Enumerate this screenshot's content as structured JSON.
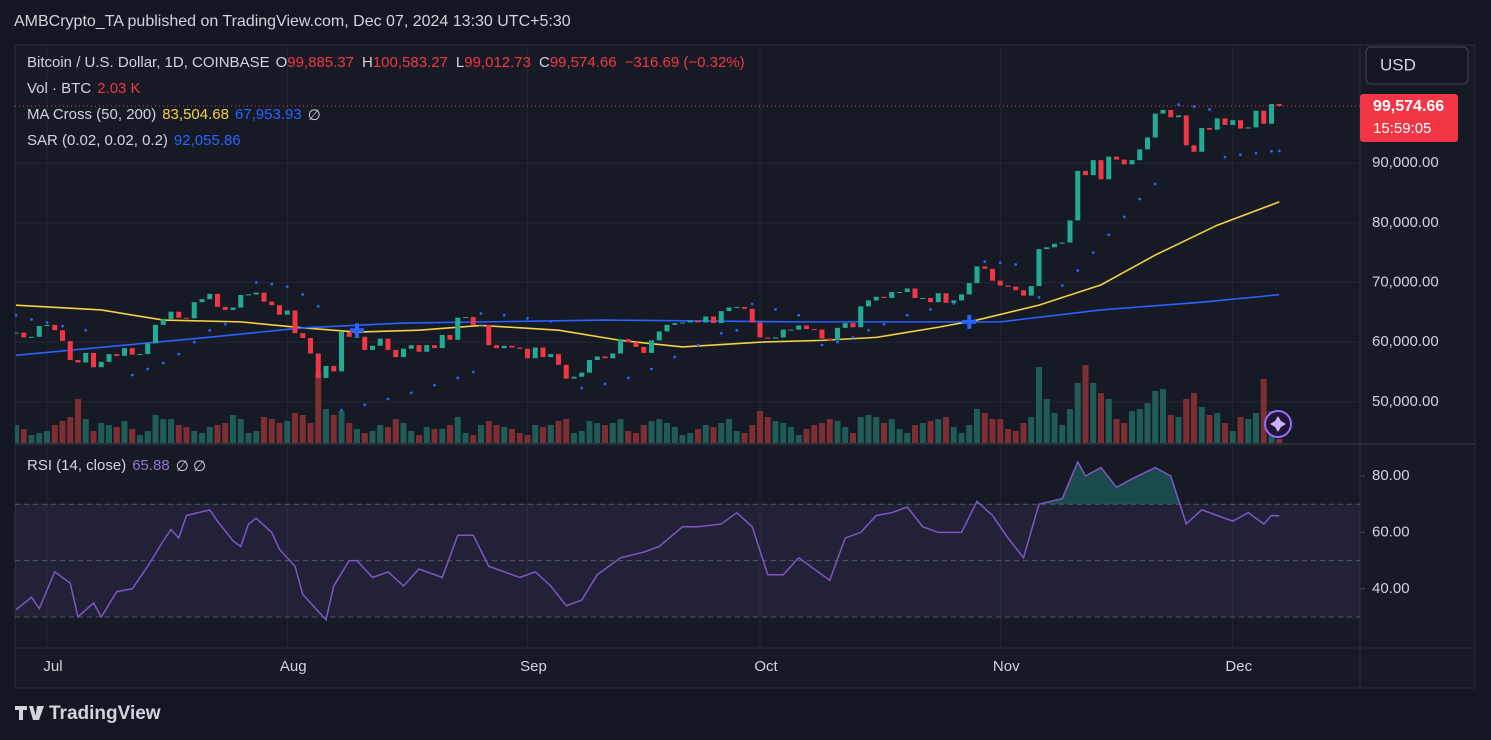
{
  "header": {
    "published": "AMBCrypto_TA published on TradingView.com, Dec 07, 2024 13:30 UTC+5:30",
    "logo": "TradingView",
    "currency": "USD"
  },
  "chart_data": [
    {
      "type": "candlestick",
      "symbol": "Bitcoin / U.S. Dollar, 1D, COINBASE",
      "ohlc": [
        {
          "label": "O",
          "value": "99,885.37"
        },
        {
          "label": "H",
          "value": "100,583.27"
        },
        {
          "label": "L",
          "value": "99,012.73"
        },
        {
          "label": "C",
          "value": "99,574.66"
        }
      ],
      "change": "−316.69 (−0.32%)",
      "volume_title": "Vol · BTC",
      "volume_label": "2.03 K",
      "ma_title": "MA Cross (50, 200)",
      "ma_labels": [
        "83,504.68",
        "67,953.93"
      ],
      "ma_extra": "∅",
      "sar_title": "SAR (0.02, 0.02, 0.2)",
      "sar_label": "92,055.86",
      "last_price_label": "99,574.66",
      "countdown": "15:59:05",
      "categories": [
        null,
        null,
        null,
        null,
        "Jul",
        null,
        null,
        null,
        null,
        null,
        null,
        null,
        null,
        null,
        null,
        null,
        null,
        null,
        null,
        null,
        null,
        null,
        null,
        null,
        null,
        null,
        null,
        null,
        null,
        null,
        null,
        null,
        null,
        null,
        null,
        "Aug",
        null,
        null,
        null,
        null,
        null,
        null,
        null,
        null,
        null,
        null,
        null,
        null,
        null,
        null,
        null,
        null,
        null,
        null,
        null,
        null,
        null,
        null,
        null,
        null,
        null,
        null,
        null,
        null,
        null,
        null,
        "Sep",
        null,
        null,
        null,
        null,
        null,
        null,
        null,
        null,
        null,
        null,
        null,
        null,
        null,
        null,
        null,
        null,
        null,
        null,
        null,
        null,
        null,
        null,
        null,
        null,
        null,
        null,
        null,
        null,
        null,
        "Oct",
        null,
        null,
        null,
        null,
        null,
        null,
        null,
        null,
        null,
        null,
        null,
        null,
        null,
        null,
        null,
        null,
        null,
        null,
        null,
        null,
        null,
        null,
        null,
        null,
        null,
        null,
        null,
        null,
        null,
        null,
        "Nov",
        null,
        null,
        null,
        null,
        null,
        null,
        null,
        null,
        null,
        null,
        null,
        null,
        null,
        null,
        null,
        null,
        null,
        null,
        null,
        null,
        null,
        null,
        null,
        null,
        null,
        null,
        null,
        null,
        null,
        "Dec",
        null,
        null,
        null,
        null,
        null,
        null
      ],
      "closes": [
        61600,
        60800,
        60900,
        62700,
        62900,
        62000,
        60200,
        57000,
        56600,
        58200,
        55800,
        56700,
        58000,
        57700,
        59000,
        57900,
        58000,
        59800,
        62900,
        63900,
        65100,
        64100,
        64000,
        66700,
        67200,
        68100,
        65900,
        65400,
        65800,
        67900,
        68000,
        68300,
        66800,
        66200,
        64600,
        65300,
        61500,
        60700,
        58100,
        54000,
        56000,
        55100,
        61700,
        60900,
        60900,
        58700,
        59400,
        60600,
        58700,
        57500,
        58900,
        59500,
        58400,
        59500,
        59000,
        61200,
        60400,
        64100,
        64200,
        62900,
        62900,
        59500,
        59000,
        59400,
        59100,
        58900,
        57300,
        59100,
        57500,
        58000,
        56200,
        53900,
        54200,
        54900,
        57000,
        57600,
        57300,
        58100,
        60500,
        60000,
        59200,
        58200,
        60300,
        61800,
        62900,
        63200,
        63300,
        63600,
        63300,
        64300,
        63200,
        65200,
        65800,
        65900,
        65600,
        63300,
        60800,
        60600,
        60800,
        62100,
        62100,
        62800,
        62200,
        62100,
        60600,
        60300,
        62400,
        63200,
        62500,
        66000,
        67000,
        67600,
        67400,
        68400,
        68400,
        69000,
        67400,
        67400,
        66700,
        68200,
        66600,
        67000,
        68000,
        69900,
        72700,
        72300,
        70300,
        69500,
        69300,
        68700,
        67800,
        69400,
        75600,
        75900,
        76500,
        76700,
        80400,
        88700,
        88000,
        90500,
        87300,
        91100,
        90600,
        89800,
        90500,
        92300,
        94300,
        98300,
        98900,
        97700,
        98000,
        93000,
        91900,
        95900,
        95600,
        97500,
        96400,
        97200,
        95800,
        96000,
        98800,
        96600,
        99900,
        99574.66
      ],
      "volumes": [
        9000,
        7000,
        4000,
        5000,
        6000,
        9000,
        11000,
        13000,
        22000,
        12000,
        6000,
        10000,
        9000,
        8000,
        11000,
        7000,
        4000,
        6000,
        14000,
        12000,
        12000,
        9000,
        8000,
        6000,
        5000,
        8000,
        9000,
        10000,
        14000,
        12000,
        5000,
        6000,
        13000,
        12000,
        10000,
        11000,
        15000,
        14000,
        10000,
        35000,
        17000,
        14000,
        16000,
        10000,
        7000,
        5000,
        6000,
        9000,
        8000,
        12000,
        10000,
        6000,
        4000,
        8000,
        7000,
        7000,
        9000,
        13000,
        5000,
        4000,
        9000,
        11000,
        9000,
        8000,
        7000,
        5000,
        4000,
        9000,
        8000,
        9000,
        11000,
        12000,
        5000,
        6000,
        11000,
        10000,
        9000,
        10000,
        12000,
        6000,
        5000,
        9000,
        11000,
        12000,
        10000,
        8000,
        4000,
        5000,
        7000,
        9000,
        8000,
        10000,
        12000,
        6000,
        5000,
        9000,
        16000,
        13000,
        11000,
        10000,
        8000,
        4000,
        7000,
        9000,
        10000,
        12000,
        11000,
        8000,
        5000,
        13000,
        14000,
        13000,
        10000,
        12000,
        7000,
        5000,
        9000,
        10000,
        11000,
        12000,
        13000,
        8000,
        5000,
        9000,
        17000,
        15000,
        12000,
        12000,
        7000,
        6000,
        10000,
        13000,
        38000,
        22000,
        15000,
        9000,
        17000,
        30000,
        39000,
        30000,
        25000,
        22000,
        12000,
        10000,
        16000,
        17000,
        20000,
        26000,
        27000,
        14000,
        13000,
        22000,
        25000,
        18000,
        14000,
        15000,
        10000,
        6000,
        13000,
        12000,
        15000,
        32000,
        16000,
        2030
      ],
      "ylim": [
        43100,
        109800
      ],
      "yticks": [
        {
          "value": 50000,
          "label": "50,000.00"
        },
        {
          "value": 60000,
          "label": "60,000.00"
        },
        {
          "value": 70000,
          "label": "70,000.00"
        },
        {
          "value": 80000,
          "label": "80,000.00"
        },
        {
          "value": 90000,
          "label": "90,000.00"
        }
      ],
      "vlim": [
        0,
        40000
      ],
      "up_color": "#22ab94",
      "down_color": "#f23645",
      "volume_up_color": "#1f5c58",
      "volume_down_color": "#7d2e33",
      "lines": [
        {
          "color": "#f5d142",
          "x": [
            0,
            11,
            19,
            29,
            37,
            44,
            52,
            60,
            70,
            78,
            86,
            96,
            104,
            111,
            119,
            124,
            132,
            140,
            147,
            155,
            163
          ],
          "values": [
            66200,
            65400,
            63700,
            63400,
            62400,
            61700,
            62000,
            62800,
            62000,
            60300,
            59200,
            60000,
            60300,
            60800,
            62500,
            63700,
            66200,
            69600,
            74600,
            79600,
            83504.68
          ]
        },
        {
          "color": "#2962ff",
          "x": [
            0,
            24,
            37,
            50,
            76,
            101,
            127,
            140,
            153,
            163
          ],
          "values": [
            57800,
            60700,
            62400,
            63200,
            63700,
            63400,
            63400,
            65400,
            66700,
            67953.93
          ]
        }
      ],
      "sar": {
        "color": "#2962ff",
        "x": [
          0,
          2,
          4,
          6,
          9,
          15,
          17,
          19,
          21,
          23,
          25,
          27,
          31,
          33,
          35,
          37,
          39,
          42,
          45,
          48,
          51,
          54,
          57,
          59,
          60,
          63,
          66,
          69,
          73,
          76,
          79,
          82,
          85,
          88,
          91,
          93,
          95,
          98,
          101,
          104,
          106,
          108,
          110,
          112,
          115,
          118,
          121,
          125,
          127,
          129,
          132,
          135,
          137,
          139,
          141,
          143,
          145,
          147,
          150,
          152,
          154,
          156,
          158,
          160,
          162,
          163
        ],
        "values": [
          64500,
          63800,
          63300,
          62700,
          62000,
          54500,
          55500,
          56500,
          58000,
          60000,
          62000,
          63000,
          70000,
          69700,
          69300,
          68000,
          66000,
          48600,
          49500,
          50500,
          51500,
          52800,
          54000,
          55000,
          64800,
          64500,
          64000,
          63500,
          52300,
          53000,
          54000,
          55500,
          57500,
          59500,
          61500,
          62000,
          66400,
          65500,
          64500,
          59500,
          60000,
          60800,
          62000,
          63000,
          64500,
          65500,
          66500,
          73500,
          73300,
          73000,
          67500,
          69500,
          72000,
          75000,
          78000,
          81000,
          84000,
          86500,
          99800,
          99500,
          99000,
          91000,
          91400,
          91700,
          92000,
          92055.86
        ]
      },
      "crosses": [
        {
          "x": 44,
          "value": 62000
        },
        {
          "x": 123,
          "value": 63400
        }
      ],
      "cross_color": "#2962ff"
    },
    {
      "type": "line",
      "title": "RSI (14, close)",
      "value_label": "65.88",
      "extra": "∅  ∅",
      "color": "#7e57c2",
      "x": [
        0,
        2,
        3,
        5,
        7,
        8,
        10,
        11,
        13,
        15,
        17,
        19,
        20,
        21,
        22,
        25,
        26,
        28,
        29,
        30,
        31,
        33,
        34,
        36,
        37,
        39,
        40,
        41,
        43,
        44,
        46,
        48,
        50,
        52,
        55,
        57,
        59,
        61,
        63,
        65,
        67,
        69,
        71,
        73,
        75,
        78,
        81,
        83,
        86,
        88,
        91,
        93,
        95,
        97,
        99,
        101,
        103,
        105,
        107,
        109,
        111,
        113,
        115,
        117,
        119,
        122,
        124,
        126,
        128,
        130,
        132,
        135,
        137,
        138,
        140,
        142,
        144,
        147,
        149,
        151,
        153,
        155,
        157,
        159,
        161,
        162,
        163
      ],
      "values": [
        32.6,
        37,
        33,
        46,
        42,
        30,
        35,
        30,
        39,
        40,
        48,
        57,
        61,
        58,
        66,
        68,
        64,
        57,
        55,
        63,
        65,
        60,
        54,
        48,
        38,
        32,
        29,
        41,
        50,
        50,
        44,
        46,
        41,
        47,
        44,
        59,
        59,
        48,
        46,
        44,
        46,
        41,
        34,
        36,
        45,
        51,
        53,
        55,
        62,
        62,
        63,
        67,
        62,
        45,
        45,
        51,
        47,
        43,
        58,
        60,
        66,
        67,
        69,
        62,
        60,
        60,
        71,
        66,
        58,
        51,
        70,
        72,
        85,
        80,
        83,
        76,
        79,
        83,
        80,
        63,
        68,
        66,
        64,
        67,
        63,
        66,
        65.88
      ],
      "ylim": [
        19,
        91
      ],
      "yticks": [
        {
          "value": 40,
          "label": "40.00"
        },
        {
          "value": 60,
          "label": "60.00"
        },
        {
          "value": 80,
          "label": "80.00"
        }
      ],
      "bands": [
        30,
        50,
        70
      ],
      "band_fill": "#7e57c2",
      "overbought_fill": "#26a69a"
    }
  ]
}
